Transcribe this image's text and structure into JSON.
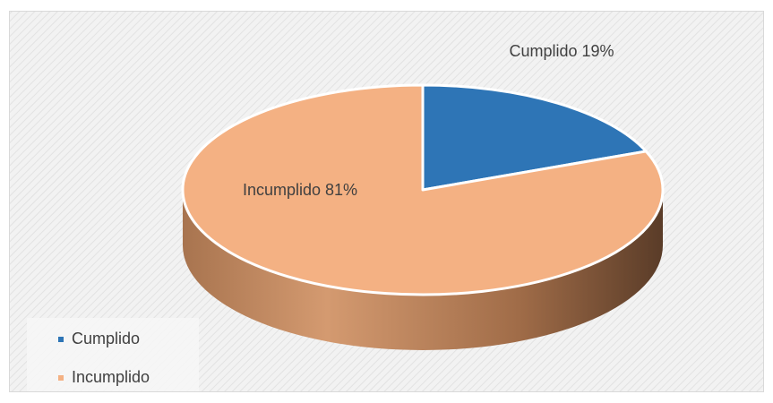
{
  "chart_data": {
    "type": "pie3d",
    "categories": [
      "Cumplido",
      "Incumplido"
    ],
    "values": [
      19,
      81
    ],
    "value_labels": [
      "Cumplido 19%",
      "Incumplido 81%"
    ],
    "series": [
      {
        "name": "Cumplido",
        "color": "#2e75b6"
      },
      {
        "name": "Incumplido",
        "color": "#f4b183"
      }
    ],
    "legend": "bottom-left"
  }
}
